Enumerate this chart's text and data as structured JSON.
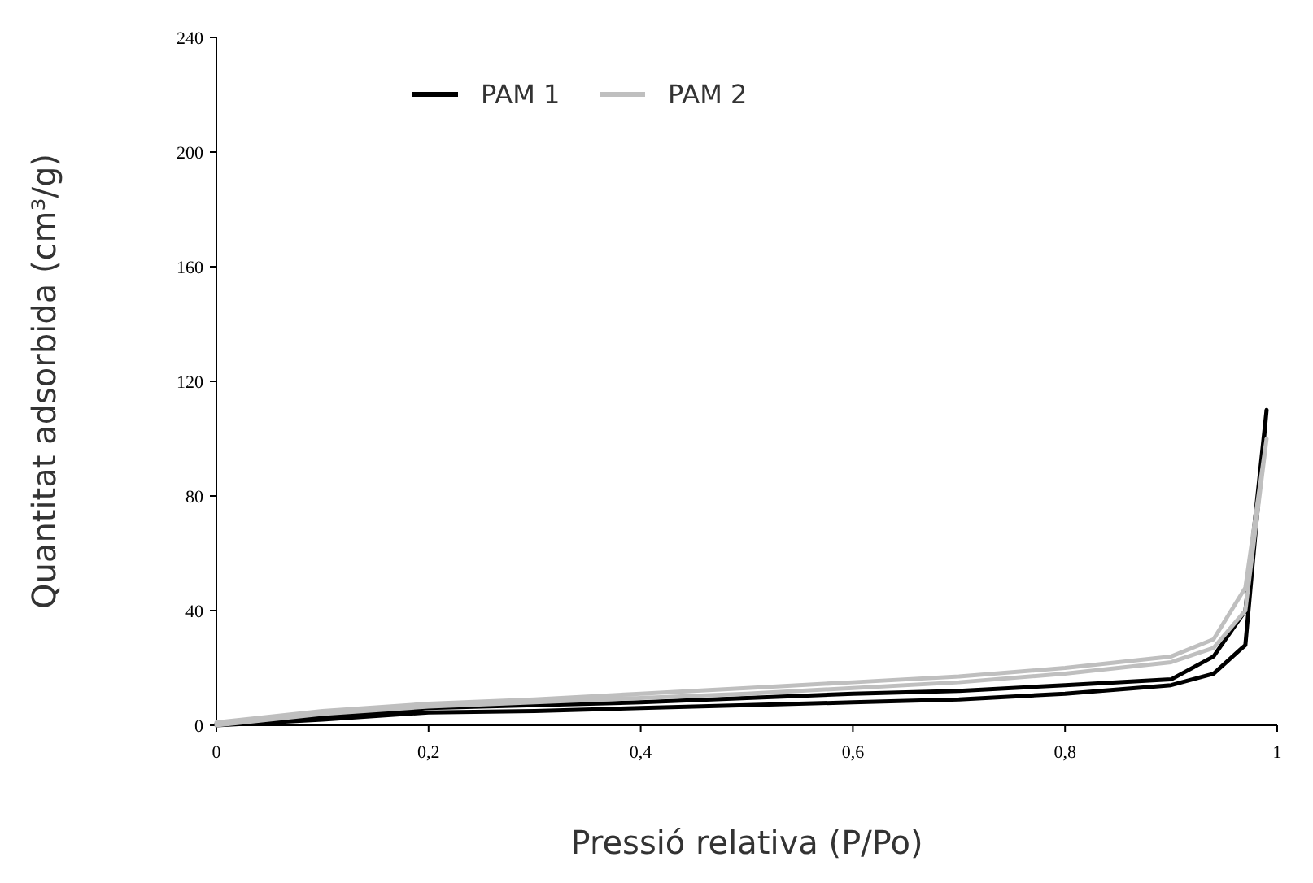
{
  "chart_data": {
    "type": "line",
    "xlabel": "Pressió relativa (P/Po)",
    "ylabel": "Quantitat adsorbida (cm³/g)",
    "xlim": [
      0,
      1
    ],
    "xticks": [
      0,
      {
        "value": 0.2,
        "label": "0,2"
      },
      {
        "value": 0.4,
        "label": "0,4"
      },
      {
        "value": 0.6,
        "label": "0,6"
      },
      {
        "value": 0.8,
        "label": "0,8"
      },
      {
        "value": 1,
        "label": "1"
      }
    ],
    "ylim": [
      0,
      240
    ],
    "yticks": [
      0,
      40,
      80,
      120,
      160,
      200,
      240
    ],
    "grid": false,
    "legend": "top",
    "marker": "none",
    "line_style": "solid",
    "series": [
      {
        "name": "PAM 1",
        "color": "#000000",
        "x": [
          0,
          0.1,
          0.2,
          0.3,
          0.4,
          0.5,
          0.6,
          0.7,
          0.8,
          0.9,
          0.94,
          0.97,
          0.99,
          0.97,
          0.94,
          0.9,
          0.8,
          0.7,
          0.6,
          0.5,
          0.4,
          0.3,
          0.2,
          0.1,
          0
        ],
        "values": [
          0,
          2,
          4.5,
          5,
          6,
          7,
          8,
          9,
          11,
          14,
          18,
          28,
          110,
          40,
          24,
          16,
          14,
          12,
          11,
          9.5,
          8,
          7,
          6,
          3,
          0.5
        ]
      },
      {
        "name": "PAM 2",
        "color": "#bfbfbf",
        "x": [
          0,
          0.1,
          0.2,
          0.3,
          0.4,
          0.5,
          0.6,
          0.7,
          0.8,
          0.9,
          0.94,
          0.97,
          0.99,
          0.97,
          0.94,
          0.9,
          0.8,
          0.7,
          0.6,
          0.5,
          0.4,
          0.3,
          0.2,
          0.1,
          0
        ],
        "values": [
          0,
          4,
          6.5,
          8,
          9.5,
          11,
          13,
          15,
          18,
          22,
          27,
          40,
          100,
          48,
          30,
          24,
          20,
          17,
          15,
          13,
          11,
          9,
          7.5,
          5,
          1
        ]
      }
    ]
  }
}
